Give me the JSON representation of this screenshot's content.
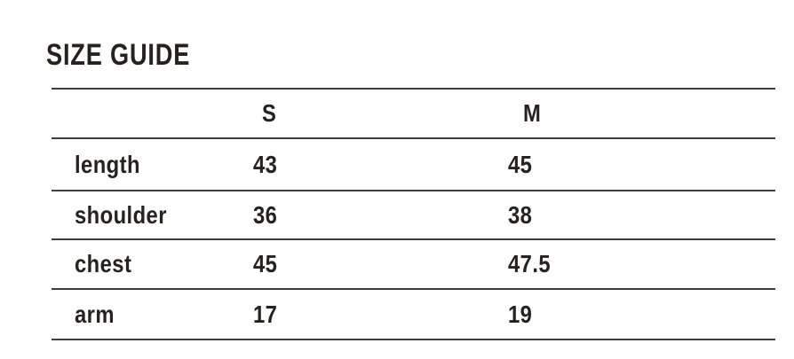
{
  "size_guide": {
    "title": "SIZE GUIDE",
    "columns": [
      "S",
      "M"
    ],
    "rows": [
      {
        "label": "length",
        "S": "43",
        "M": "45"
      },
      {
        "label": "shoulder",
        "S": "36",
        "M": "38"
      },
      {
        "label": "chest",
        "S": "45",
        "M": "47.5"
      },
      {
        "label": "arm",
        "S": "17",
        "M": "19"
      }
    ]
  },
  "colors": {
    "background": "#ffffff",
    "text": "#272220",
    "line": "#3e3e3e"
  }
}
